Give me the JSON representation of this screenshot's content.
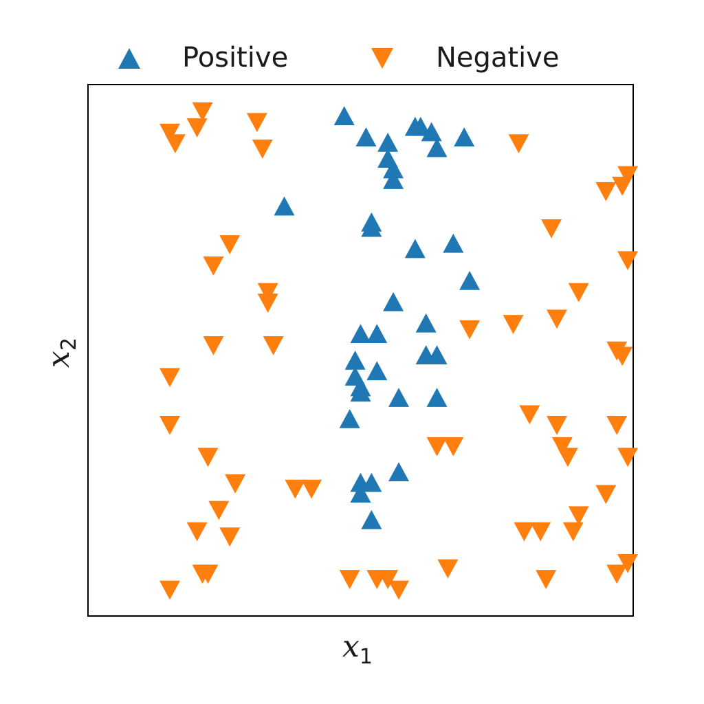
{
  "chart_data": {
    "type": "scatter",
    "title": "",
    "xlabel": "x",
    "xlabel_sub": "1",
    "ylabel": "x",
    "ylabel_sub": "2",
    "xlim": [
      0,
      1
    ],
    "ylim": [
      0,
      1
    ],
    "xticks": [],
    "yticks": [],
    "grid": false,
    "legend": "top, outside plot, two columns",
    "series": [
      {
        "name": "Positive",
        "marker": "triangle-up",
        "color": "#1f77b4",
        "points": [
          [
            0.47,
            0.94
          ],
          [
            0.51,
            0.9
          ],
          [
            0.55,
            0.89
          ],
          [
            0.55,
            0.86
          ],
          [
            0.56,
            0.84
          ],
          [
            0.56,
            0.82
          ],
          [
            0.6,
            0.92
          ],
          [
            0.61,
            0.92
          ],
          [
            0.63,
            0.91
          ],
          [
            0.64,
            0.88
          ],
          [
            0.69,
            0.9
          ],
          [
            0.36,
            0.77
          ],
          [
            0.52,
            0.74
          ],
          [
            0.52,
            0.73
          ],
          [
            0.6,
            0.69
          ],
          [
            0.67,
            0.7
          ],
          [
            0.7,
            0.63
          ],
          [
            0.56,
            0.59
          ],
          [
            0.62,
            0.55
          ],
          [
            0.5,
            0.53
          ],
          [
            0.53,
            0.53
          ],
          [
            0.62,
            0.49
          ],
          [
            0.64,
            0.49
          ],
          [
            0.49,
            0.48
          ],
          [
            0.53,
            0.46
          ],
          [
            0.49,
            0.45
          ],
          [
            0.5,
            0.43
          ],
          [
            0.5,
            0.42
          ],
          [
            0.57,
            0.41
          ],
          [
            0.64,
            0.41
          ],
          [
            0.48,
            0.37
          ],
          [
            0.57,
            0.27
          ],
          [
            0.5,
            0.25
          ],
          [
            0.52,
            0.25
          ],
          [
            0.5,
            0.23
          ],
          [
            0.52,
            0.18
          ]
        ]
      },
      {
        "name": "Negative",
        "marker": "triangle-down",
        "color": "#ff7f0e",
        "points": [
          [
            0.21,
            0.95
          ],
          [
            0.2,
            0.92
          ],
          [
            0.15,
            0.91
          ],
          [
            0.16,
            0.89
          ],
          [
            0.31,
            0.93
          ],
          [
            0.32,
            0.88
          ],
          [
            0.79,
            0.89
          ],
          [
            0.95,
            0.8
          ],
          [
            0.98,
            0.81
          ],
          [
            0.99,
            0.83
          ],
          [
            0.85,
            0.73
          ],
          [
            0.26,
            0.7
          ],
          [
            0.23,
            0.66
          ],
          [
            0.99,
            0.67
          ],
          [
            0.9,
            0.61
          ],
          [
            0.33,
            0.61
          ],
          [
            0.33,
            0.59
          ],
          [
            0.86,
            0.56
          ],
          [
            0.78,
            0.55
          ],
          [
            0.7,
            0.54
          ],
          [
            0.23,
            0.51
          ],
          [
            0.34,
            0.51
          ],
          [
            0.97,
            0.5
          ],
          [
            0.98,
            0.49
          ],
          [
            0.15,
            0.45
          ],
          [
            0.15,
            0.36
          ],
          [
            0.81,
            0.38
          ],
          [
            0.86,
            0.36
          ],
          [
            0.97,
            0.36
          ],
          [
            0.64,
            0.32
          ],
          [
            0.67,
            0.32
          ],
          [
            0.87,
            0.32
          ],
          [
            0.88,
            0.3
          ],
          [
            0.22,
            0.3
          ],
          [
            0.99,
            0.3
          ],
          [
            0.27,
            0.25
          ],
          [
            0.38,
            0.24
          ],
          [
            0.41,
            0.24
          ],
          [
            0.95,
            0.23
          ],
          [
            0.24,
            0.2
          ],
          [
            0.9,
            0.19
          ],
          [
            0.2,
            0.16
          ],
          [
            0.26,
            0.15
          ],
          [
            0.8,
            0.16
          ],
          [
            0.83,
            0.16
          ],
          [
            0.89,
            0.16
          ],
          [
            0.21,
            0.08
          ],
          [
            0.22,
            0.08
          ],
          [
            0.48,
            0.07
          ],
          [
            0.53,
            0.07
          ],
          [
            0.55,
            0.07
          ],
          [
            0.57,
            0.05
          ],
          [
            0.66,
            0.09
          ],
          [
            0.84,
            0.07
          ],
          [
            0.97,
            0.08
          ],
          [
            0.99,
            0.1
          ],
          [
            0.15,
            0.05
          ]
        ]
      }
    ]
  }
}
